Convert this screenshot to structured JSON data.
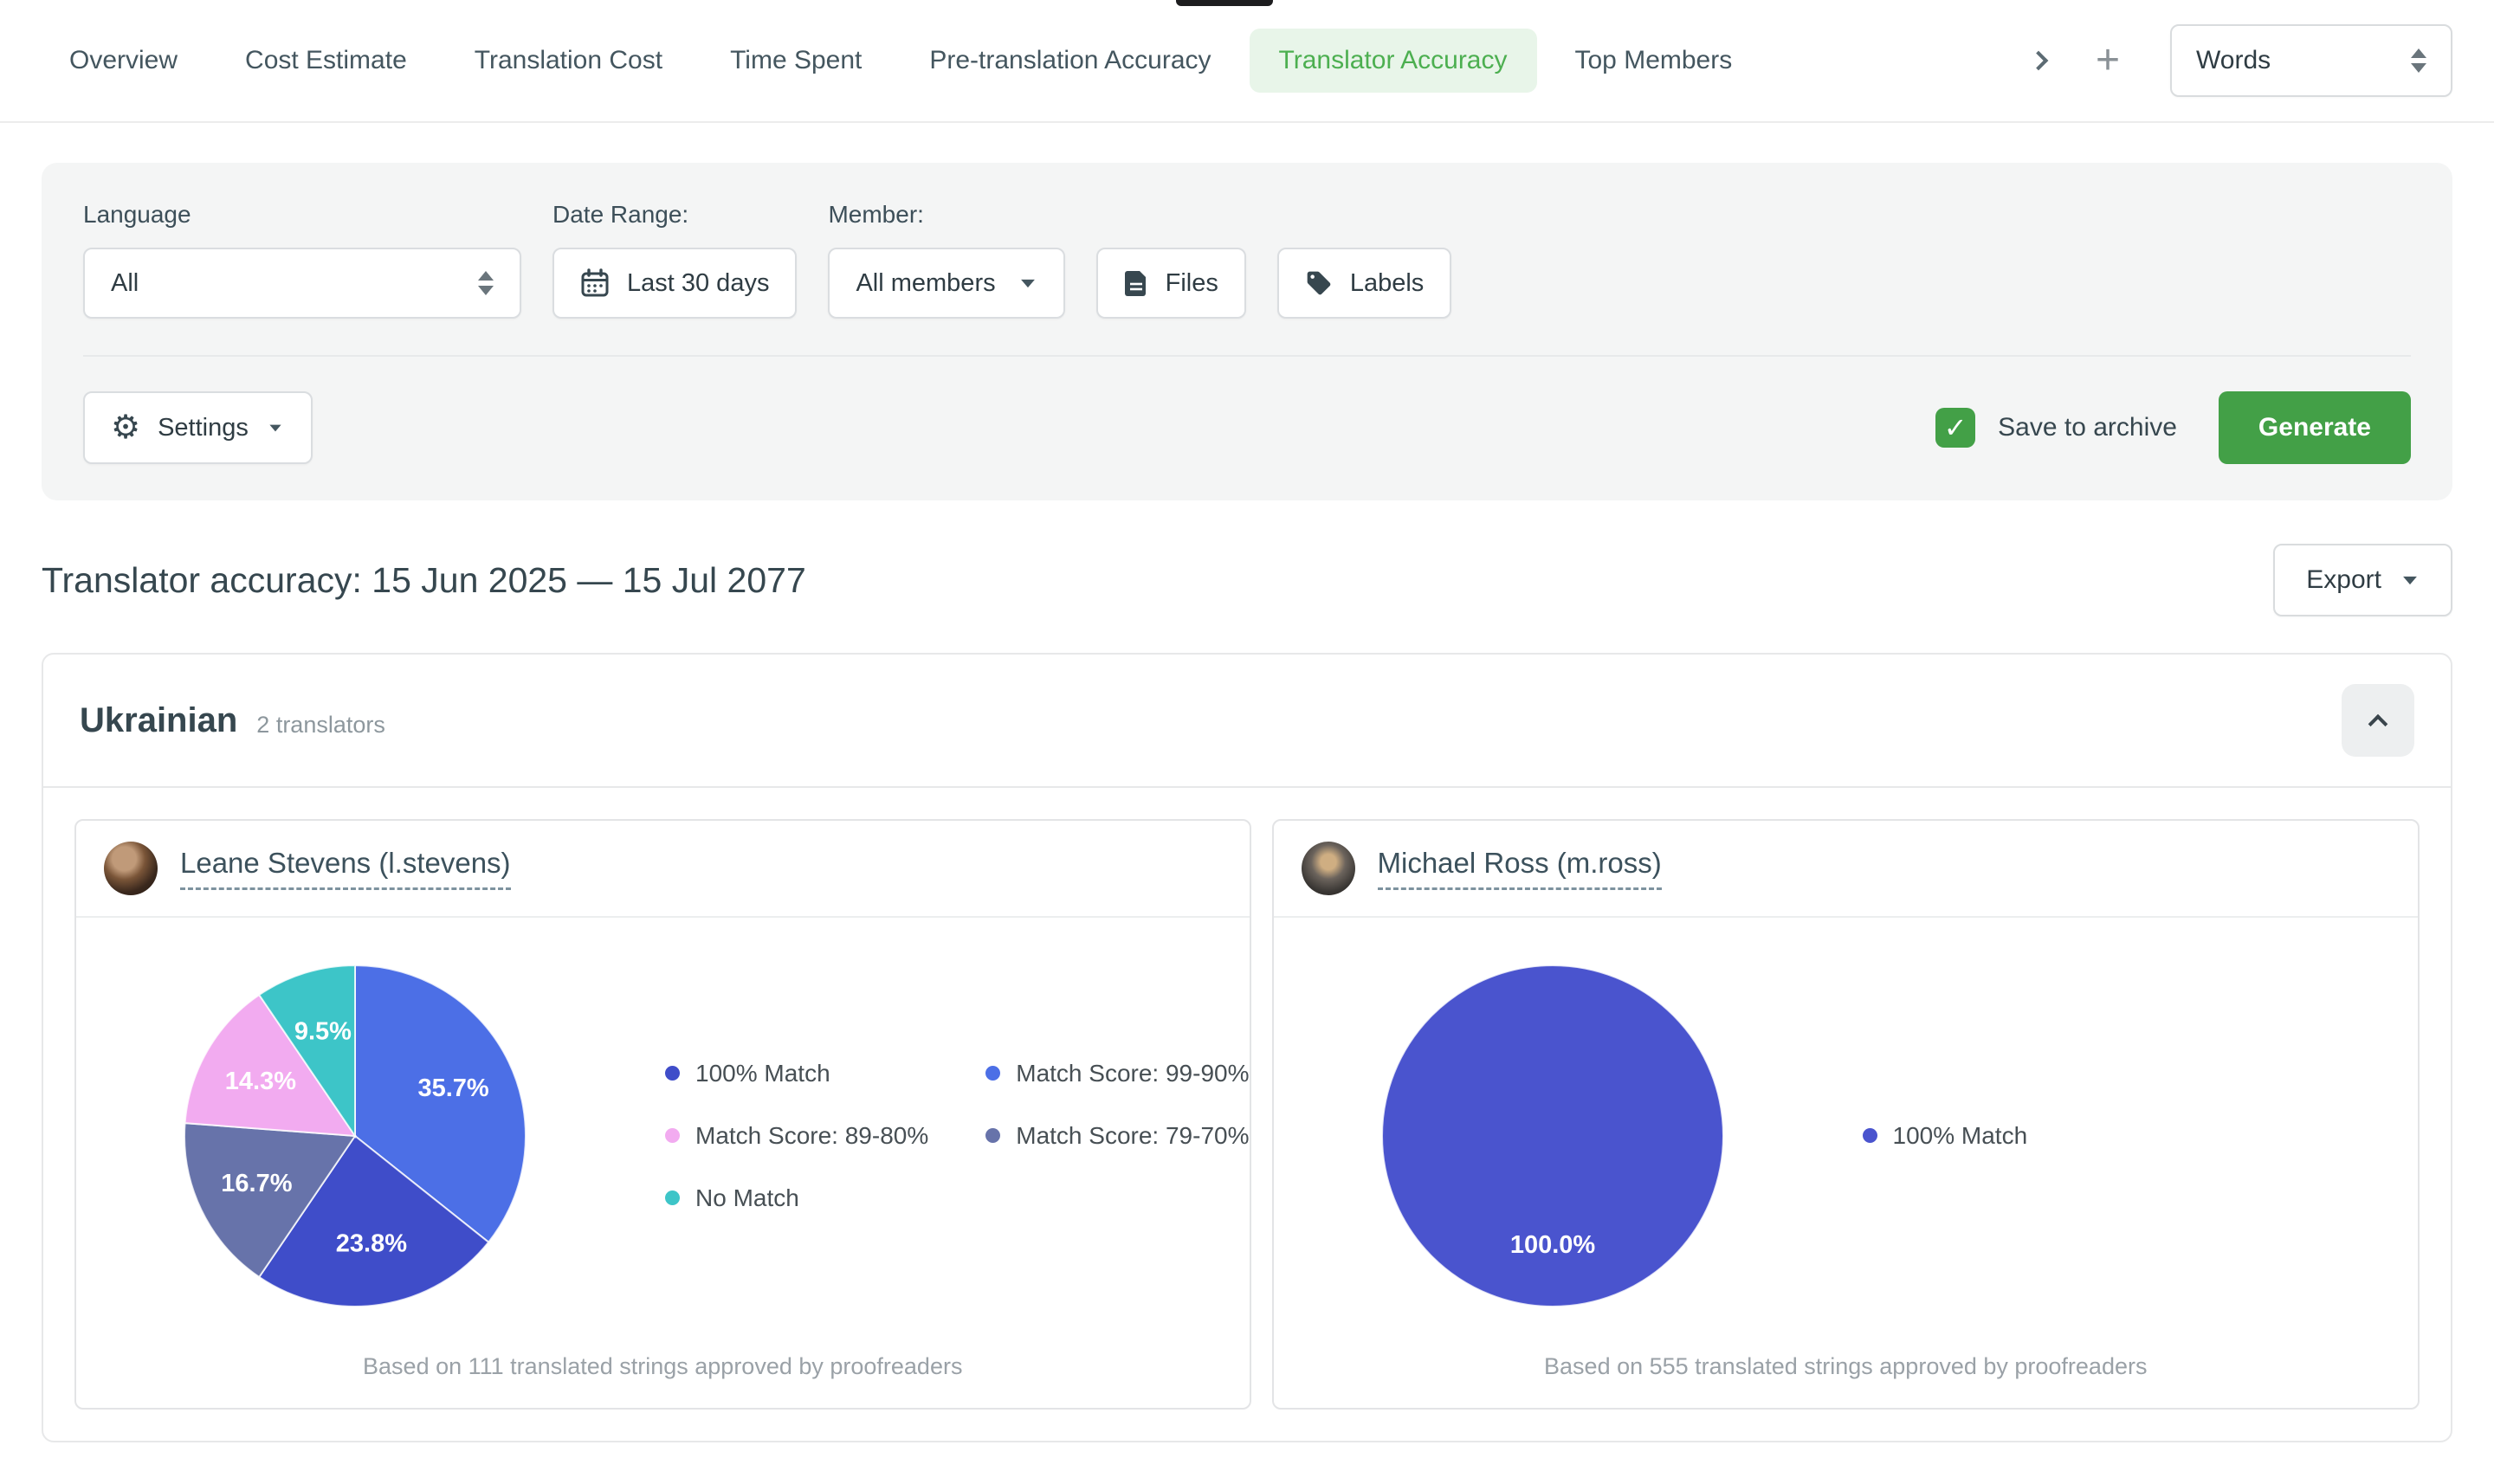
{
  "top_bar": {
    "tabs": [
      {
        "label": "Overview",
        "active": false
      },
      {
        "label": "Cost Estimate",
        "active": false
      },
      {
        "label": "Translation Cost",
        "active": false
      },
      {
        "label": "Time Spent",
        "active": false
      },
      {
        "label": "Pre-translation Accuracy",
        "active": false
      },
      {
        "label": "Translator Accuracy",
        "active": true
      },
      {
        "label": "Top Members",
        "active": false
      }
    ],
    "add_tab_glyph": "+",
    "unit_select": {
      "value": "Words"
    }
  },
  "filters": {
    "language": {
      "label": "Language",
      "value": "All"
    },
    "date_range": {
      "label": "Date Range:",
      "value": "Last 30 days"
    },
    "member": {
      "label": "Member:",
      "value": "All members"
    },
    "files_button": "Files",
    "labels_button": "Labels",
    "settings_button": "Settings",
    "save_to_archive": {
      "label": "Save to archive",
      "checked": true
    },
    "generate_button": "Generate"
  },
  "report": {
    "title": "Translator accuracy: 15 Jun 2025 — 15 Jul 2077",
    "export_button": "Export"
  },
  "section": {
    "language": "Ukrainian",
    "translators_count": "2 translators"
  },
  "colors": {
    "accent_green": "#43a047",
    "active_tab_bg": "#e8f5e9",
    "active_tab_text": "#4caf50",
    "match_100": "#3f4dc9",
    "match_99_90": "#4c6fe6",
    "match_89_80": "#f2abf0",
    "match_79_70": "#6773aa",
    "no_match": "#3dc5c8"
  },
  "translators": [
    {
      "name": "Leane Stevens (l.stevens)",
      "footnote": "Based on 111 translated strings approved by proofreaders",
      "chart": {
        "type": "pie",
        "title": "",
        "slices": [
          {
            "label": "Match Score: 99-90%",
            "value": 35.7,
            "pct_label": "35.7%",
            "color": "#4c6fe6"
          },
          {
            "label": "100% Match",
            "value": 23.8,
            "pct_label": "23.8%",
            "color": "#3f4dc9"
          },
          {
            "label": "Match Score: 79-70%",
            "value": 16.7,
            "pct_label": "16.7%",
            "color": "#6773aa"
          },
          {
            "label": "Match Score: 89-80%",
            "value": 14.3,
            "pct_label": "14.3%",
            "color": "#f2abf0"
          },
          {
            "label": "No Match",
            "value": 9.5,
            "pct_label": "9.5%",
            "color": "#3dc5c8"
          }
        ],
        "legend": [
          {
            "label": "100% Match",
            "color": "#3f4dc9"
          },
          {
            "label": "Match Score: 99-90%",
            "color": "#4c6fe6"
          },
          {
            "label": "Match Score: 89-80%",
            "color": "#f2abf0"
          },
          {
            "label": "Match Score: 79-70%",
            "color": "#6773aa"
          },
          {
            "label": "No Match",
            "color": "#3dc5c8"
          }
        ],
        "legend_position": "right"
      }
    },
    {
      "name": "Michael Ross (m.ross)",
      "footnote": "Based on 555 translated strings approved by proofreaders",
      "chart": {
        "type": "pie",
        "title": "",
        "slices": [
          {
            "label": "100% Match",
            "value": 100.0,
            "pct_label": "100.0%",
            "color": "#4a54ce"
          }
        ],
        "legend": [
          {
            "label": "100% Match",
            "color": "#4a54ce"
          }
        ],
        "legend_position": "right"
      }
    }
  ],
  "chart_data": [
    {
      "type": "pie",
      "title": "Leane Stevens (l.stevens) translator accuracy",
      "categories": [
        "Match Score: 99-90%",
        "100% Match",
        "Match Score: 79-70%",
        "Match Score: 89-80%",
        "No Match"
      ],
      "values": [
        35.7,
        23.8,
        16.7,
        14.3,
        9.5
      ],
      "annotations": [
        "35.7%",
        "23.8%",
        "16.7%",
        "14.3%",
        "9.5%"
      ],
      "legend_position": "right",
      "footnote": "Based on 111 translated strings approved by proofreaders"
    },
    {
      "type": "pie",
      "title": "Michael Ross (m.ross) translator accuracy",
      "categories": [
        "100% Match"
      ],
      "values": [
        100.0
      ],
      "annotations": [
        "100.0%"
      ],
      "legend_position": "right",
      "footnote": "Based on 555 translated strings approved by proofreaders"
    }
  ]
}
